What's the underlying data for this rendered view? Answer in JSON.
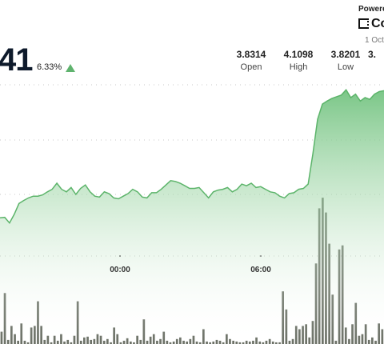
{
  "header": {
    "price_partial": "41",
    "change_percent": "6.33%",
    "change_direction": "up",
    "stats": [
      {
        "value": "3.8314",
        "label": "Open"
      },
      {
        "value": "4.1098",
        "label": "High"
      },
      {
        "value": "3.8201",
        "label": "Low"
      },
      {
        "value": "3.",
        "label": ""
      }
    ]
  },
  "branding": {
    "powered_label": "Powere",
    "brand_name": "Co",
    "date": "1 Oct"
  },
  "colors": {
    "line": "#5cb46a",
    "fill_top": "#6cc07a",
    "up": "#5fb36e",
    "volume": "#6d7268"
  },
  "chart_data": {
    "type": "area",
    "x_tick_labels": [
      "00:00",
      "06:00"
    ],
    "price_values": [
      3.812,
      3.813,
      3.8,
      3.82,
      3.845,
      3.852,
      3.858,
      3.862,
      3.862,
      3.865,
      3.872,
      3.878,
      3.892,
      3.878,
      3.872,
      3.882,
      3.866,
      3.88,
      3.888,
      3.872,
      3.862,
      3.86,
      3.872,
      3.868,
      3.858,
      3.856,
      3.862,
      3.868,
      3.878,
      3.872,
      3.86,
      3.858,
      3.87,
      3.87,
      3.878,
      3.888,
      3.898,
      3.896,
      3.892,
      3.886,
      3.88,
      3.88,
      3.882,
      3.87,
      3.858,
      3.872,
      3.876,
      3.878,
      3.882,
      3.872,
      3.878,
      3.89,
      3.886,
      3.892,
      3.882,
      3.884,
      3.878,
      3.872,
      3.87,
      3.862,
      3.858,
      3.868,
      3.87,
      3.878,
      3.88,
      3.89,
      3.96,
      4.04,
      4.075,
      4.082,
      4.088,
      4.092,
      4.096,
      4.108,
      4.09,
      4.098,
      4.082,
      4.09,
      4.086,
      4.098,
      4.104,
      4.106
    ],
    "volume_values": [
      15,
      62,
      5,
      22,
      12,
      4,
      25,
      4,
      2,
      20,
      22,
      52,
      22,
      5,
      10,
      2,
      10,
      4,
      12,
      3,
      5,
      2,
      10,
      52,
      4,
      8,
      9,
      5,
      6,
      12,
      10,
      4,
      6,
      2,
      20,
      12,
      2,
      4,
      7,
      3,
      2,
      10,
      5,
      30,
      4,
      9,
      12,
      4,
      6,
      15,
      4,
      2,
      3,
      6,
      8,
      4,
      3,
      6,
      10,
      3,
      2,
      18,
      3,
      2,
      3,
      5,
      4,
      2,
      12,
      6,
      4,
      3,
      2,
      2,
      4,
      3,
      4,
      8,
      3,
      2,
      4,
      6,
      3,
      2,
      2,
      64,
      42,
      4,
      6,
      22,
      18,
      22,
      24,
      8,
      28,
      98,
      165,
      178,
      160,
      122,
      60,
      4,
      115,
      120,
      20,
      6,
      24,
      50,
      10,
      12,
      24,
      5,
      8,
      4,
      25,
      18
    ],
    "ylim": [
      3.52,
      4.14
    ],
    "volume_max": 180
  }
}
